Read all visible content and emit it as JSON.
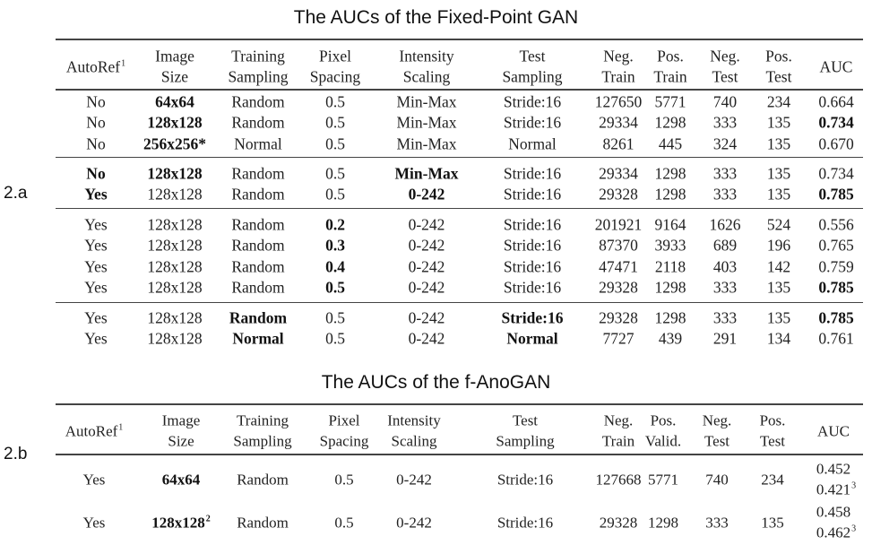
{
  "table_a": {
    "title": "The AUCs of the Fixed-Point GAN",
    "label": "2.a",
    "headers": [
      [
        {
          "text": "AutoRef",
          "sup": "1"
        }
      ],
      [
        {
          "text": "Image"
        },
        {
          "text": "Size"
        }
      ],
      [
        {
          "text": "Training"
        },
        {
          "text": "Sampling"
        }
      ],
      [
        {
          "text": "Pixel"
        },
        {
          "text": "Spacing"
        }
      ],
      [
        {
          "text": "Intensity"
        },
        {
          "text": "Scaling"
        }
      ],
      [
        {
          "text": "Test"
        },
        {
          "text": "Sampling"
        }
      ],
      [
        {
          "text": "Neg."
        },
        {
          "text": "Train"
        }
      ],
      [
        {
          "text": "Pos."
        },
        {
          "text": "Train"
        }
      ],
      [
        {
          "text": "Neg."
        },
        {
          "text": "Test"
        }
      ],
      [
        {
          "text": "Pos."
        },
        {
          "text": "Test"
        }
      ],
      [
        {
          "text": "AUC"
        }
      ]
    ],
    "groups": [
      [
        [
          {
            "t": "No"
          },
          {
            "t": "64x64",
            "b": true
          },
          {
            "t": "Random"
          },
          {
            "t": "0.5"
          },
          {
            "t": "Min-Max"
          },
          {
            "t": "Stride:16"
          },
          {
            "t": "127650"
          },
          {
            "t": "5771"
          },
          {
            "t": "740"
          },
          {
            "t": "234"
          },
          {
            "t": "0.664"
          }
        ],
        [
          {
            "t": "No"
          },
          {
            "t": "128x128",
            "b": true
          },
          {
            "t": "Random"
          },
          {
            "t": "0.5"
          },
          {
            "t": "Min-Max"
          },
          {
            "t": "Stride:16"
          },
          {
            "t": "29334"
          },
          {
            "t": "1298"
          },
          {
            "t": "333"
          },
          {
            "t": "135"
          },
          {
            "t": "0.734",
            "b": true
          }
        ],
        [
          {
            "t": "No"
          },
          {
            "t": "256x256*",
            "b": true
          },
          {
            "t": "Normal"
          },
          {
            "t": "0.5"
          },
          {
            "t": "Min-Max"
          },
          {
            "t": "Normal"
          },
          {
            "t": "8261"
          },
          {
            "t": "445"
          },
          {
            "t": "324"
          },
          {
            "t": "135"
          },
          {
            "t": "0.670"
          }
        ]
      ],
      [
        [
          {
            "t": "No",
            "b": true
          },
          {
            "t": "128x128",
            "b": true
          },
          {
            "t": "Random"
          },
          {
            "t": "0.5"
          },
          {
            "t": "Min-Max",
            "b": true
          },
          {
            "t": "Stride:16"
          },
          {
            "t": "29334"
          },
          {
            "t": "1298"
          },
          {
            "t": "333"
          },
          {
            "t": "135"
          },
          {
            "t": "0.734"
          }
        ],
        [
          {
            "t": "Yes",
            "b": true
          },
          {
            "t": "128x128"
          },
          {
            "t": "Random"
          },
          {
            "t": "0.5"
          },
          {
            "t": "0-242",
            "b": true
          },
          {
            "t": "Stride:16"
          },
          {
            "t": "29328"
          },
          {
            "t": "1298"
          },
          {
            "t": "333"
          },
          {
            "t": "135"
          },
          {
            "t": "0.785",
            "b": true
          }
        ]
      ],
      [
        [
          {
            "t": "Yes"
          },
          {
            "t": "128x128"
          },
          {
            "t": "Random"
          },
          {
            "t": "0.2",
            "b": true
          },
          {
            "t": "0-242"
          },
          {
            "t": "Stride:16"
          },
          {
            "t": "201921"
          },
          {
            "t": "9164"
          },
          {
            "t": "1626"
          },
          {
            "t": "524"
          },
          {
            "t": "0.556"
          }
        ],
        [
          {
            "t": "Yes"
          },
          {
            "t": "128x128"
          },
          {
            "t": "Random"
          },
          {
            "t": "0.3",
            "b": true
          },
          {
            "t": "0-242"
          },
          {
            "t": "Stride:16"
          },
          {
            "t": "87370"
          },
          {
            "t": "3933"
          },
          {
            "t": "689"
          },
          {
            "t": "196"
          },
          {
            "t": "0.765"
          }
        ],
        [
          {
            "t": "Yes"
          },
          {
            "t": "128x128"
          },
          {
            "t": "Random"
          },
          {
            "t": "0.4",
            "b": true
          },
          {
            "t": "0-242"
          },
          {
            "t": "Stride:16"
          },
          {
            "t": "47471"
          },
          {
            "t": "2118"
          },
          {
            "t": "403"
          },
          {
            "t": "142"
          },
          {
            "t": "0.759"
          }
        ],
        [
          {
            "t": "Yes"
          },
          {
            "t": "128x128"
          },
          {
            "t": "Random"
          },
          {
            "t": "0.5",
            "b": true
          },
          {
            "t": "0-242"
          },
          {
            "t": "Stride:16"
          },
          {
            "t": "29328"
          },
          {
            "t": "1298"
          },
          {
            "t": "333"
          },
          {
            "t": "135"
          },
          {
            "t": "0.785",
            "b": true
          }
        ]
      ],
      [
        [
          {
            "t": "Yes"
          },
          {
            "t": "128x128"
          },
          {
            "t": "Random",
            "b": true
          },
          {
            "t": "0.5"
          },
          {
            "t": "0-242"
          },
          {
            "t": "Stride:16",
            "b": true
          },
          {
            "t": "29328"
          },
          {
            "t": "1298"
          },
          {
            "t": "333"
          },
          {
            "t": "135"
          },
          {
            "t": "0.785",
            "b": true
          }
        ],
        [
          {
            "t": "Yes"
          },
          {
            "t": "128x128"
          },
          {
            "t": "Normal",
            "b": true
          },
          {
            "t": "0.5"
          },
          {
            "t": "0-242"
          },
          {
            "t": "Normal",
            "b": true
          },
          {
            "t": "7727"
          },
          {
            "t": "439"
          },
          {
            "t": "291"
          },
          {
            "t": "134"
          },
          {
            "t": "0.761"
          }
        ]
      ]
    ]
  },
  "table_b": {
    "title": "The AUCs of the f-AnoGAN",
    "label": "2.b",
    "headers": [
      [
        {
          "text": "AutoRef",
          "sup": "1"
        }
      ],
      [
        {
          "text": "Image"
        },
        {
          "text": "Size"
        }
      ],
      [
        {
          "text": "Training"
        },
        {
          "text": "Sampling"
        }
      ],
      [
        {
          "text": "Pixel"
        },
        {
          "text": "Spacing"
        }
      ],
      [
        {
          "text": "Intensity"
        },
        {
          "text": "Scaling"
        }
      ],
      [
        {
          "text": "Test"
        },
        {
          "text": "Sampling"
        }
      ],
      [
        {
          "text": "Neg."
        },
        {
          "text": "Train"
        }
      ],
      [
        {
          "text": "Pos."
        },
        {
          "text": "Valid."
        }
      ],
      [
        {
          "text": "Neg."
        },
        {
          "text": "Test"
        }
      ],
      [
        {
          "text": "Pos."
        },
        {
          "text": "Test"
        }
      ],
      [
        {
          "text": "AUC"
        }
      ]
    ],
    "rows": [
      [
        {
          "t": "Yes"
        },
        {
          "t": "64x64",
          "b": true
        },
        {
          "t": "Random"
        },
        {
          "t": "0.5"
        },
        {
          "t": "0-242"
        },
        {
          "t": "Stride:16"
        },
        {
          "t": "127668"
        },
        {
          "t": "5771"
        },
        {
          "t": "740"
        },
        {
          "t": "234"
        },
        {
          "lines": [
            {
              "t": "0.452"
            },
            {
              "t": "0.421",
              "sup": "3"
            }
          ]
        }
      ],
      [
        {
          "t": "Yes"
        },
        {
          "t": "128x128",
          "b": true,
          "sup": "2"
        },
        {
          "t": "Random"
        },
        {
          "t": "0.5"
        },
        {
          "t": "0-242"
        },
        {
          "t": "Stride:16"
        },
        {
          "t": "29328"
        },
        {
          "t": "1298"
        },
        {
          "t": "333"
        },
        {
          "t": "135"
        },
        {
          "lines": [
            {
              "t": "0.458"
            },
            {
              "t": "0.462",
              "sup": "3"
            }
          ]
        }
      ]
    ]
  }
}
